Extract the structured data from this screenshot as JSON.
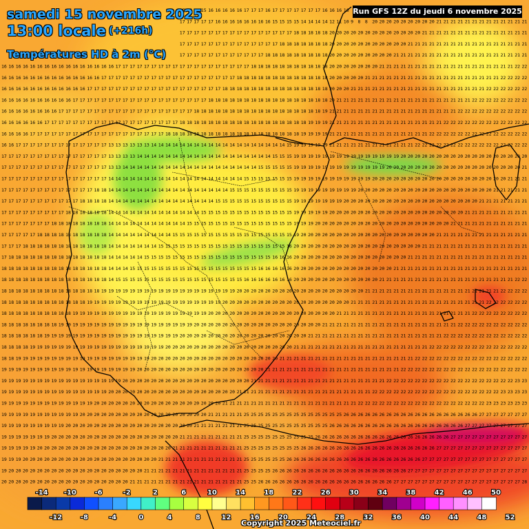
{
  "header": {
    "date_line": "samedi 15 novembre 2025",
    "time_line": "13:00 locale",
    "lead_time": "(+216h)",
    "variable": "Températures HD à 2m (°C)"
  },
  "run_info": "Run GFS 12Z du jeudi 6 novembre 2025",
  "copyright": "Copyright 2025 Meteociel.fr",
  "grid": {
    "row_labels": [
      "14 14 14 14 14 14 14 15 15 15 15 15 15 15 15 15 15 15 15 15 15 15 15 15 15 15 15 15 15 16 16 16 16 16 17 17 17 16 17 17 17 17 17 17 17 16 16 16 16 16 16 16 16 15 15 15 15 15 15 15 15 15 13 12 13",
      "14 14 14 14 14 15 15 15 15 15 15 15 15 15 15 15 15 15 15 16 16 16 16 17 17 17 17 17 17 17 16 16 16 16 16 16 16 16 15 15 15 15 14 14 14 14 12 11 10 9 8 8"
    ],
    "legend_ticks_top": [
      "-14",
      "-10",
      "-6",
      "-2",
      "2",
      "6",
      "10",
      "14",
      "18",
      "22",
      "26",
      "30",
      "34",
      "38",
      "42",
      "46",
      "50"
    ],
    "legend_ticks_bottom": [
      "-12",
      "-8",
      "-4",
      "0",
      "4",
      "8",
      "12",
      "16",
      "20",
      "24",
      "28",
      "32",
      "36",
      "40",
      "44",
      "48",
      "52"
    ],
    "legend_colors": [
      "#0a1a4a",
      "#0b2a7a",
      "#0a3aa8",
      "#0a2ad8",
      "#1050ff",
      "#2a80ff",
      "#3aa8ff",
      "#38d8ff",
      "#40f0c8",
      "#60ff80",
      "#a8ff40",
      "#d8ff40",
      "#ffff40",
      "#ffff90",
      "#ffe060",
      "#ffc030",
      "#ff9820",
      "#ff7818",
      "#ff5818",
      "#ff3018",
      "#ff1010",
      "#e00010",
      "#b80018",
      "#8a0018",
      "#600010",
      "#700060",
      "#a00090",
      "#d000c8",
      "#ff20ff",
      "#ff60ff",
      "#ff90ff",
      "#ffc0ff",
      "#ffffff"
    ]
  }
}
